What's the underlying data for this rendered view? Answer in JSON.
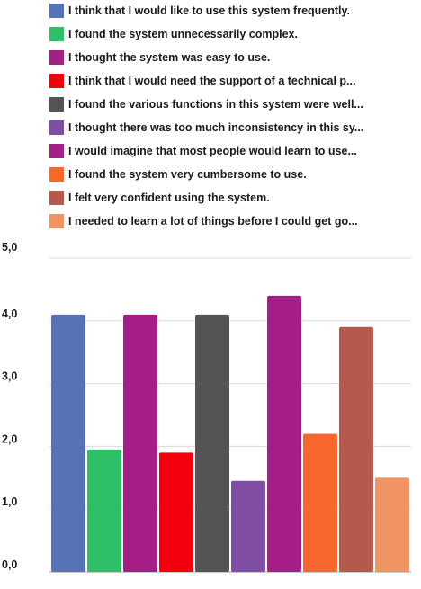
{
  "chart_data": {
    "type": "bar",
    "title": "",
    "xlabel": "",
    "ylabel": "",
    "ylim": [
      0,
      5
    ],
    "y_ticks": [
      "0,0",
      "1,0",
      "2,0",
      "3,0",
      "4,0",
      "5,0"
    ],
    "grid": true,
    "legend_position": "top",
    "series": [
      {
        "name": "I think that I would like to use this system frequently.",
        "value": 4.1,
        "color": "#5673b8"
      },
      {
        "name": "I found the system unnecessarily complex.",
        "value": 1.95,
        "color": "#2dbe66"
      },
      {
        "name": "I thought the system was easy to use.",
        "value": 4.1,
        "color": "#a41f85"
      },
      {
        "name": "I think that I would need the support of a technical p...",
        "value": 1.9,
        "color": "#f2000e"
      },
      {
        "name": "I found the various functions in this system were well...",
        "value": 4.1,
        "color": "#545454"
      },
      {
        "name": "I thought there was too much inconsistency in this sy...",
        "value": 1.45,
        "color": "#804da5"
      },
      {
        "name": "I would imagine that most people would learn to use...",
        "value": 4.4,
        "color": "#a41f85"
      },
      {
        "name": "I found the system very cumbersome to use.",
        "value": 2.2,
        "color": "#f8672d"
      },
      {
        "name": "I felt very confident using the system.",
        "value": 3.9,
        "color": "#b4594c"
      },
      {
        "name": "I needed to learn a lot of things before I could get go...",
        "value": 1.5,
        "color": "#ee9563"
      }
    ]
  }
}
